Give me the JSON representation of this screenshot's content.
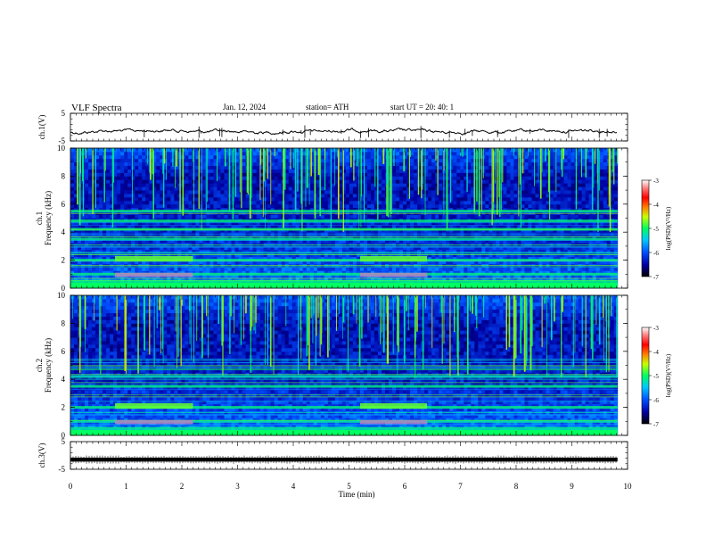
{
  "header": {
    "title": "VLF  Spectra",
    "date": "Jan. 12, 2024",
    "station": "station= ATH",
    "start": "start  UT  =   20: 40: 1"
  },
  "chart_data": [
    {
      "type": "line",
      "ylabel": "ch.1(V)",
      "ylim": [
        -5,
        5
      ],
      "y_ticks": [
        "5",
        "-5"
      ],
      "xlim": [
        0,
        10
      ],
      "approx_level": -1.5,
      "signal_end_min": 9.82,
      "line_color": "#000000"
    },
    {
      "type": "heatmap",
      "ylabel": "ch.1\nFrequency (kHz)",
      "ylabel_lines": [
        "ch.1",
        "Frequency  (kHz)"
      ],
      "ylim": [
        0,
        10
      ],
      "y_ticks": [
        "0",
        "2",
        "4",
        "6",
        "8",
        "10"
      ],
      "xlim": [
        0,
        10
      ],
      "signal_end_min": 9.82,
      "colorbar": {
        "label": "log(PSD)(V²/Hz)",
        "range": [
          -7,
          -3
        ],
        "ticks": [
          "-3",
          "-4",
          "-5",
          "-6",
          "-7"
        ]
      },
      "notable_bands_khz": [
        0.5,
        1.0,
        2.0,
        3.5,
        4.2,
        4.8,
        5.5
      ],
      "enhanced_segments_min": [
        [
          0.8,
          2.2
        ],
        [
          5.2,
          6.4
        ]
      ]
    },
    {
      "type": "heatmap",
      "ylabel": "ch.2\nFrequency (kHz)",
      "ylabel_lines": [
        "ch.2",
        "Frequency  (kHz)"
      ],
      "ylim": [
        0,
        10
      ],
      "y_ticks": [
        "0",
        "2",
        "4",
        "6",
        "8",
        "10"
      ],
      "xlim": [
        0,
        10
      ],
      "signal_end_min": 9.82,
      "colorbar": {
        "label": "log(PSD)(V²/Hz)",
        "range": [
          -7,
          -3
        ],
        "ticks": [
          "-3",
          "-4",
          "-5",
          "-6",
          "-7"
        ]
      },
      "notable_bands_khz": [
        0.5,
        1.0,
        2.0,
        3.5,
        4.2
      ],
      "enhanced_segments_min": [
        [
          0.8,
          2.2
        ],
        [
          5.2,
          6.4
        ]
      ]
    },
    {
      "type": "line",
      "ylabel": "ch.3(V)",
      "ylim": [
        -5,
        5
      ],
      "y_ticks": [
        "5",
        "-5"
      ],
      "xlim": [
        0,
        10
      ],
      "approx_level": -1.5,
      "signal_end_min": 9.82,
      "line_color": "#000000"
    }
  ],
  "x_axis": {
    "label": "Time  (min)",
    "ticks": [
      "0",
      "1",
      "2",
      "3",
      "4",
      "5",
      "6",
      "7",
      "8",
      "9",
      "10"
    ]
  }
}
